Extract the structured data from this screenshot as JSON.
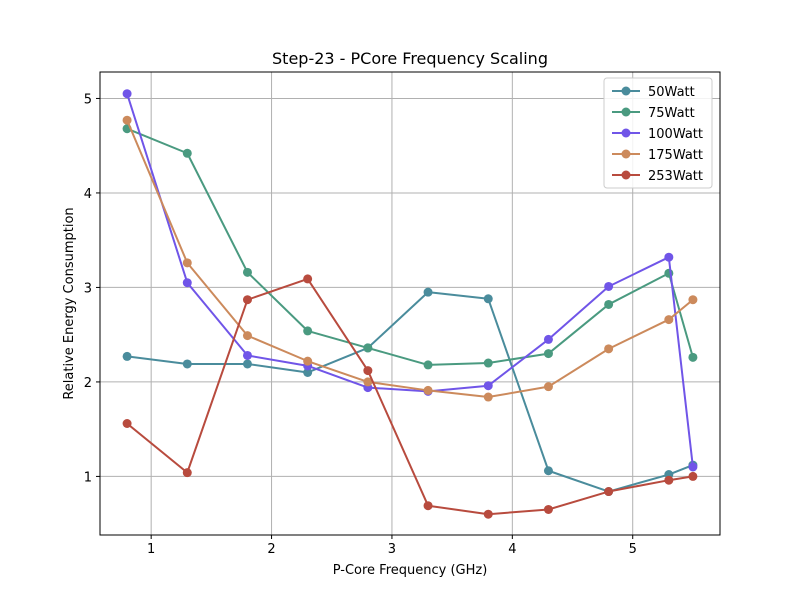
{
  "chart_data": {
    "type": "line",
    "title": "Step-23 - PCore Frequency Scaling",
    "xlabel": "P-Core Frequency (GHz)",
    "ylabel": "Relative Energy Consumption",
    "xlim": [
      0.575,
      5.725
    ],
    "ylim": [
      0.38,
      5.28
    ],
    "xticks": [
      1,
      2,
      3,
      4,
      5
    ],
    "yticks": [
      1,
      2,
      3,
      4,
      5
    ],
    "grid": true,
    "legend_position": "top-right",
    "x": [
      0.8,
      1.3,
      1.8,
      2.3,
      2.8,
      3.3,
      3.8,
      4.3,
      4.8,
      5.3,
      5.5
    ],
    "series": [
      {
        "name": "50Watt",
        "color": "#4a8c9c",
        "values": [
          2.27,
          2.19,
          2.19,
          2.1,
          2.36,
          2.95,
          2.88,
          1.06,
          0.84,
          1.02,
          1.12
        ]
      },
      {
        "name": "75Watt",
        "color": "#4a9a80",
        "values": [
          4.68,
          4.42,
          3.16,
          2.54,
          2.36,
          2.18,
          2.2,
          2.3,
          2.82,
          3.15,
          2.26
        ]
      },
      {
        "name": "100Watt",
        "color": "#7055e8",
        "values": [
          5.05,
          3.05,
          2.28,
          2.17,
          1.94,
          1.9,
          1.96,
          2.45,
          3.01,
          3.32,
          1.1
        ]
      },
      {
        "name": "175Watt",
        "color": "#cc8a5c",
        "values": [
          4.77,
          3.26,
          2.49,
          2.22,
          2.0,
          1.91,
          1.84,
          1.95,
          2.35,
          2.66,
          2.87
        ]
      },
      {
        "name": "253Watt",
        "color": "#b84b3e",
        "values": [
          1.56,
          1.04,
          2.87,
          3.09,
          2.12,
          0.69,
          0.6,
          0.65,
          0.84,
          0.96,
          1.0
        ]
      }
    ]
  }
}
